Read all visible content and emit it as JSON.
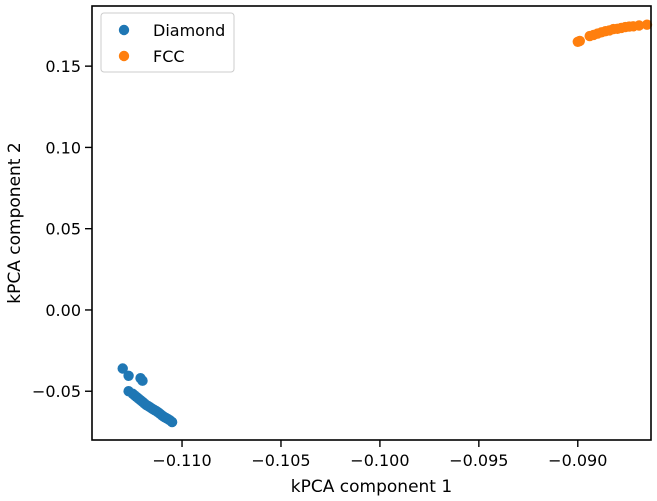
{
  "chart_data": {
    "type": "scatter",
    "title": "",
    "xlabel": "kPCA component 1",
    "ylabel": "kPCA component 2",
    "xlim": [
      -0.11455,
      -0.0863
    ],
    "ylim": [
      -0.08,
      0.187
    ],
    "xticks": [
      -0.11,
      -0.105,
      -0.1,
      -0.095,
      -0.09
    ],
    "xtick_labels": [
      "−0.110",
      "−0.105",
      "−0.100",
      "−0.095",
      "−0.090"
    ],
    "yticks": [
      -0.05,
      0.0,
      0.05,
      0.1,
      0.15
    ],
    "ytick_labels": [
      "−0.05",
      "0.00",
      "0.05",
      "0.10",
      "0.15"
    ],
    "grid": false,
    "legend_position": "upper-left",
    "series": [
      {
        "name": "Diamond",
        "color": "#1f77b4",
        "points": [
          [
            -0.113,
            -0.036
          ],
          [
            -0.1127,
            -0.0405
          ],
          [
            -0.1121,
            -0.042
          ],
          [
            -0.112,
            -0.0435
          ],
          [
            -0.1127,
            -0.05
          ],
          [
            -0.1125,
            -0.0515
          ],
          [
            -0.1124,
            -0.0525
          ],
          [
            -0.1123,
            -0.0535
          ],
          [
            -0.1122,
            -0.0545
          ],
          [
            -0.1121,
            -0.0555
          ],
          [
            -0.112,
            -0.0565
          ],
          [
            -0.1119,
            -0.0575
          ],
          [
            -0.1118,
            -0.0585
          ],
          [
            -0.1117,
            -0.0592
          ],
          [
            -0.1116,
            -0.06
          ],
          [
            -0.1115,
            -0.0608
          ],
          [
            -0.1114,
            -0.0615
          ],
          [
            -0.1113,
            -0.0622
          ],
          [
            -0.1112,
            -0.063
          ],
          [
            -0.1111,
            -0.064
          ],
          [
            -0.111,
            -0.065
          ],
          [
            -0.1109,
            -0.0658
          ],
          [
            -0.1108,
            -0.0665
          ],
          [
            -0.1107,
            -0.0672
          ],
          [
            -0.1106,
            -0.068
          ],
          [
            -0.1105,
            -0.069
          ]
        ]
      },
      {
        "name": "FCC",
        "color": "#ff7f0e",
        "points": [
          [
            -0.09,
            0.165
          ],
          [
            -0.0899,
            0.1655
          ],
          [
            -0.0894,
            0.1685
          ],
          [
            -0.0892,
            0.1692
          ],
          [
            -0.089,
            0.17
          ],
          [
            -0.0888,
            0.1708
          ],
          [
            -0.0886,
            0.1715
          ],
          [
            -0.0884,
            0.172
          ],
          [
            -0.0882,
            0.1728
          ],
          [
            -0.088,
            0.173
          ],
          [
            -0.0878,
            0.1735
          ],
          [
            -0.0876,
            0.174
          ],
          [
            -0.0874,
            0.1743
          ],
          [
            -0.0872,
            0.1745
          ],
          [
            -0.0869,
            0.175
          ],
          [
            -0.0865,
            0.1755
          ]
        ]
      }
    ]
  }
}
